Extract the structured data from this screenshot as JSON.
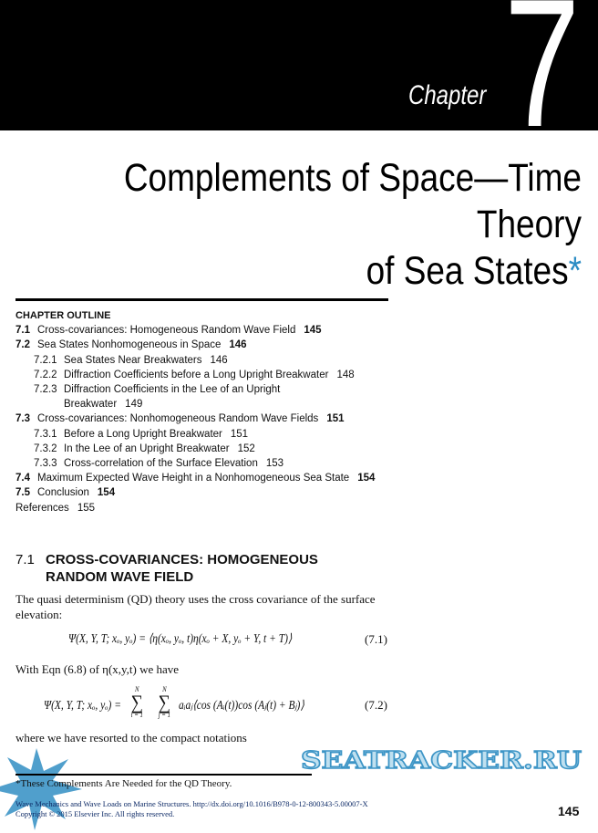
{
  "header": {
    "chapter_word": "Chapter",
    "chapter_number": "7"
  },
  "title": {
    "line1": "Complements of Space—Time Theory",
    "line2": "of Sea States",
    "asterisk": "*",
    "accent": "#2b8cc4"
  },
  "outline": {
    "heading": "CHAPTER OUTLINE",
    "items": [
      {
        "num": "7.1",
        "text": "Cross-covariances: Homogeneous Random Wave Field",
        "page": "145",
        "level": 1
      },
      {
        "num": "7.2",
        "text": "Sea States Nonhomogeneous in Space",
        "page": "146",
        "level": 1
      },
      {
        "num": "7.2.1",
        "text": "Sea States Near Breakwaters",
        "page": "146",
        "level": 2
      },
      {
        "num": "7.2.2",
        "text": "Diffraction Coefficients before a Long Upright Breakwater",
        "page": "148",
        "level": 2
      },
      {
        "num": "7.2.3",
        "text": "Diffraction Coefficients in the Lee of an Upright",
        "cont": "Breakwater",
        "page": "149",
        "level": 2
      },
      {
        "num": "7.3",
        "text": "Cross-covariances: Nonhomogeneous Random Wave Fields",
        "page": "151",
        "level": 1
      },
      {
        "num": "7.3.1",
        "text": "Before a Long Upright Breakwater",
        "page": "151",
        "level": 2
      },
      {
        "num": "7.3.2",
        "text": "In the Lee of an Upright Breakwater",
        "page": "152",
        "level": 2
      },
      {
        "num": "7.3.3",
        "text": "Cross-correlation of the Surface Elevation",
        "page": "153",
        "level": 2
      },
      {
        "num": "7.4",
        "text": "Maximum Expected Wave Height in a Nonhomogeneous Sea State",
        "page": "154",
        "level": 1
      },
      {
        "num": "7.5",
        "text": "Conclusion",
        "page": "154",
        "level": 1
      },
      {
        "num": "",
        "text": "References",
        "page": "155",
        "level": 0
      }
    ]
  },
  "section": {
    "number": "7.1",
    "title": "CROSS-COVARIANCES: HOMOGENEOUS RANDOM WAVE FIELD"
  },
  "body": {
    "p1": "The quasi determinism (QD) theory uses the cross covariance of the surface elevation:",
    "eq1": "Ψ(X, Y, T; xₒ, yₒ) = ⟨η(xₒ, yₒ, t)η(xₒ + X, yₒ + Y, t + T)⟩",
    "eq1_num": "(7.1)",
    "p2": "With Eqn (6.8) of η(x,y,t) we have",
    "eq2_lhs": "Ψ(X, Y, T; xₒ, yₒ) =",
    "eq2_rhs": "aᵢaⱼ⟨cos (Aᵢ(t))cos (Aⱼ(t) + Bⱼ)⟩",
    "eq2_sum1_top": "N",
    "eq2_sum1_bot": "i = 1",
    "eq2_sum2_top": "N",
    "eq2_sum2_bot": "j = 1",
    "eq2_num": "(7.2)",
    "p3": "where we have resorted to the compact notations"
  },
  "footnote": "*These Complements Are Needed for the QD Theory.",
  "citation": {
    "line1": "Wave Mechanics and Wave Loads on Marine Structures. http://dx.doi.org/10.1016/B978-0-12-800343-5.00007-X",
    "line2": "Copyright © 2015 Elsevier Inc. All rights reserved."
  },
  "page_number": "145",
  "watermark": {
    "text": "SEATRACKER.RU",
    "color": "#3d95c6"
  }
}
